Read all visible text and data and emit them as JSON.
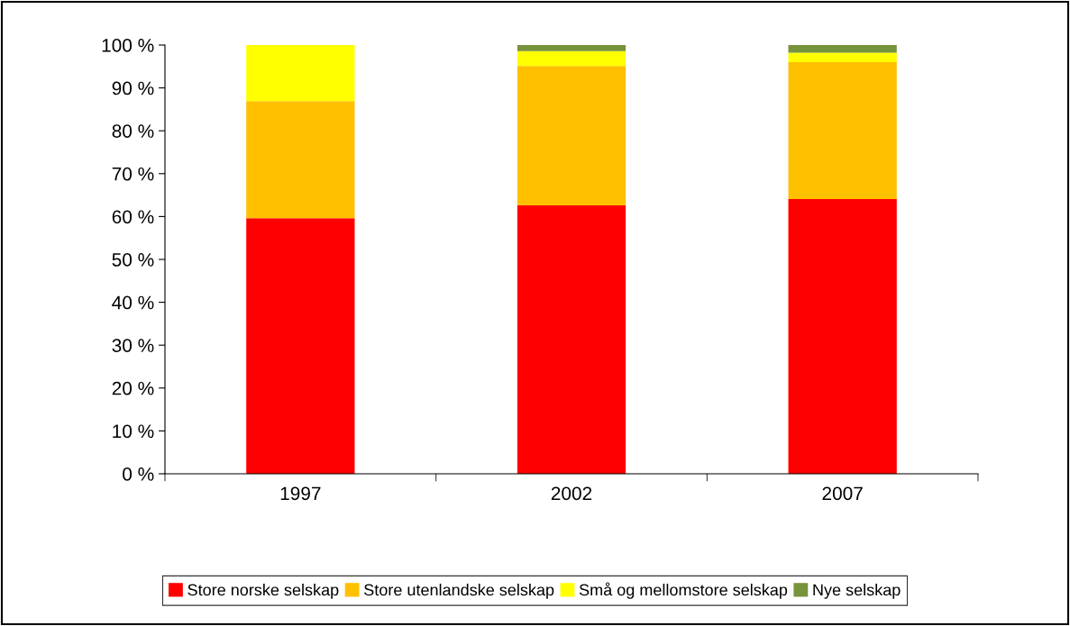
{
  "chart_data": {
    "type": "bar",
    "stacked": true,
    "categories": [
      "1997",
      "2002",
      "2007"
    ],
    "series": [
      {
        "name": "Store norske selskap",
        "color": "#ff0000",
        "values": [
          59.6,
          62.6,
          64.1
        ]
      },
      {
        "name": "Store utenlandske selskap",
        "color": "#ffc000",
        "values": [
          27.3,
          32.5,
          31.9
        ]
      },
      {
        "name": "Små og mellomstore selskap",
        "color": "#ffff00",
        "values": [
          13.1,
          3.5,
          2.2
        ]
      },
      {
        "name": "Nye selskap",
        "color": "#77933c",
        "values": [
          0,
          1.4,
          1.8
        ]
      }
    ],
    "ylim": [
      0,
      100
    ],
    "yticks": [
      {
        "value": 0,
        "label": "0 %"
      },
      {
        "value": 10,
        "label": "10 %"
      },
      {
        "value": 20,
        "label": "20 %"
      },
      {
        "value": 30,
        "label": "30 %"
      },
      {
        "value": 40,
        "label": "40 %"
      },
      {
        "value": 50,
        "label": "50 %"
      },
      {
        "value": 60,
        "label": "60 %"
      },
      {
        "value": 70,
        "label": "70 %"
      },
      {
        "value": 80,
        "label": "80 %"
      },
      {
        "value": 90,
        "label": "90 %"
      },
      {
        "value": 100,
        "label": "100 %"
      }
    ],
    "grid": false,
    "legend": "bottom"
  }
}
